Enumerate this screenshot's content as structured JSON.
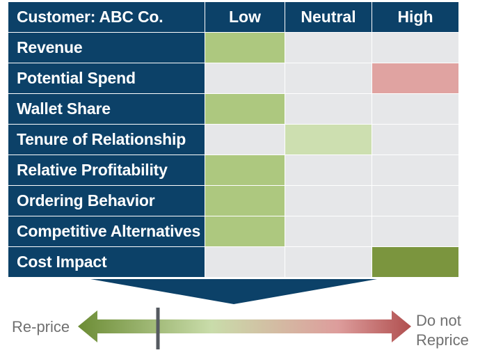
{
  "matrix": {
    "corner_label": "Customer: ABC Co.",
    "columns": [
      "Low",
      "Neutral",
      "High"
    ],
    "rows": [
      {
        "label": "Revenue",
        "rating": "Low"
      },
      {
        "label": "Potential Spend",
        "rating": "High"
      },
      {
        "label": "Wallet Share",
        "rating": "Low"
      },
      {
        "label": "Tenure of Relationship",
        "rating": "Neutral"
      },
      {
        "label": "Relative Profitability",
        "rating": "Low"
      },
      {
        "label": "Ordering Behavior",
        "rating": "Low"
      },
      {
        "label": "Competitive Alternatives",
        "rating": "Low"
      },
      {
        "label": "Cost Impact",
        "rating": "High"
      }
    ]
  },
  "scale": {
    "left_label": "Re-price",
    "right_label_line1": "Do not",
    "right_label_line2": "Reprice",
    "marker_position": 0.24
  },
  "colors": {
    "header_bg": "#0c4168",
    "empty_cell": "#e6e7e9",
    "grid_line": "#ffffff",
    "low_fill": "#adc87f",
    "neutral_fill": "#cddfb0",
    "high_fill_warning": "#e0a3a1",
    "high_fill_strong": "#7b953e",
    "arrow_left": "#6c8c35",
    "arrow_mid": "#c9dcaa",
    "arrow_pink": "#dd9d9c",
    "arrow_right": "#b04f4f",
    "marker": "#555a60"
  }
}
